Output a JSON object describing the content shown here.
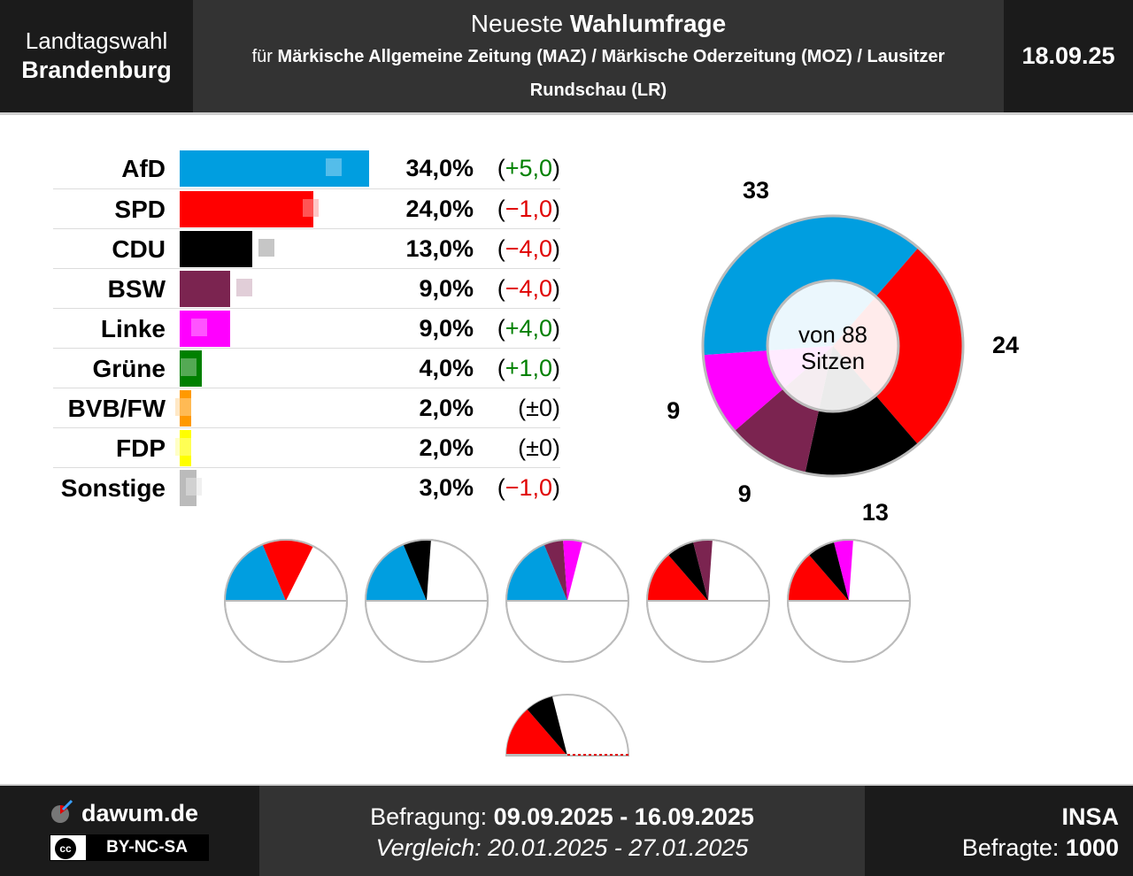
{
  "header": {
    "left_line1": "Landtagswahl",
    "left_line2": "Brandenburg",
    "title_prefix": "Neueste ",
    "title_bold": "Wahlumfrage",
    "subtitle_prefix": "für ",
    "subtitle_bold": "Märkische Allgemeine Zeitung (MAZ) / Märkische Oderzeitung (MOZ) / Lausitzer Rundschau (LR)",
    "date": "18.09.25"
  },
  "chart_data": [
    {
      "type": "bar",
      "categories": [
        "AfD",
        "SPD",
        "CDU",
        "BSW",
        "Linke",
        "Grüne",
        "BVB/FW",
        "FDP",
        "Sonstige"
      ],
      "values": [
        34.0,
        24.0,
        13.0,
        9.0,
        9.0,
        4.0,
        2.0,
        2.0,
        3.0
      ],
      "previous_values": [
        29.0,
        25.0,
        17.0,
        13.0,
        5.0,
        3.0,
        2.0,
        2.0,
        4.0
      ],
      "value_labels": [
        "34,0%",
        "24,0%",
        "13,0%",
        "9,0%",
        "9,0%",
        "4,0%",
        "2,0%",
        "2,0%",
        "3,0%"
      ],
      "change_labels": [
        "+5,0",
        "−1,0",
        "−4,0",
        "−4,0",
        "+4,0",
        "+1,0",
        "±0",
        "±0",
        "−1,0"
      ],
      "change_signs": [
        "pos",
        "neg",
        "neg",
        "neg",
        "pos",
        "pos",
        "zero",
        "zero",
        "neg"
      ],
      "colors": [
        "#009ee0",
        "#ff0000",
        "#000000",
        "#7b2450",
        "#ff00ff",
        "#008000",
        "#ff9900",
        "#ffff00",
        "#bbbbbb"
      ],
      "xlim": [
        0,
        34
      ]
    },
    {
      "type": "pie",
      "variant": "donut",
      "categories": [
        "AfD",
        "SPD",
        "CDU",
        "BSW",
        "Linke"
      ],
      "values": [
        33,
        24,
        13,
        9,
        9
      ],
      "colors": [
        "#009ee0",
        "#ff0000",
        "#000000",
        "#7b2450",
        "#ff00ff"
      ],
      "center_line1": "von 88",
      "center_line2": "Sitzen",
      "seat_labels": [
        "33",
        "24",
        "13",
        "9",
        "9"
      ]
    },
    {
      "type": "pie",
      "variant": "coalition-semicircles",
      "total_seats": 88,
      "coalitions": [
        [
          "AfD",
          "SPD"
        ],
        [
          "AfD",
          "CDU"
        ],
        [
          "AfD",
          "BSW",
          "Linke"
        ],
        [
          "SPD",
          "CDU",
          "BSW"
        ],
        [
          "SPD",
          "CDU",
          "Linke"
        ],
        [
          "SPD",
          "CDU"
        ]
      ]
    }
  ],
  "footer": {
    "brand": "dawum.de",
    "license_cc": "cc",
    "license": "BY-NC-SA",
    "survey_label": "Befragung: ",
    "survey_period": "09.09.2025 - 16.09.2025",
    "compare_label": "Vergleich: ",
    "compare_period": "20.01.2025 - 27.01.2025",
    "institute": "INSA",
    "respondents_label": "Befragte: ",
    "respondents": "1000"
  }
}
